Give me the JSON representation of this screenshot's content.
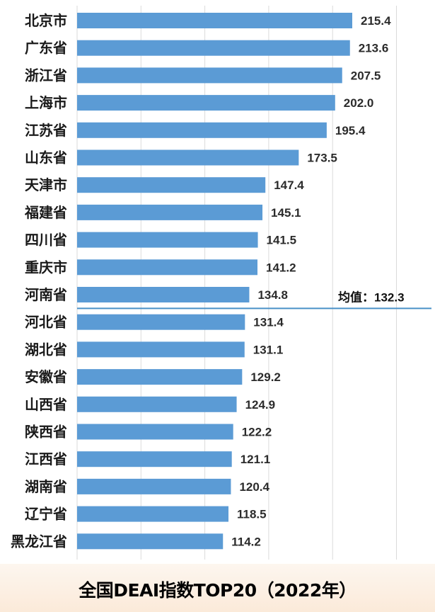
{
  "title": "全国DEAI指数TOP20（2022年）",
  "mean": {
    "label": "均值：",
    "value": "132.3"
  },
  "colors": {
    "bar": "#5b9bd5",
    "mean_line": "#4a90c8",
    "footer_band": "#fbead9"
  },
  "chart_data": {
    "type": "bar",
    "orientation": "horizontal",
    "title": "全国DEAI指数TOP20（2022年）",
    "xlabel": "",
    "ylabel": "",
    "xlim": [
      0,
      250
    ],
    "grid": true,
    "reference_line": {
      "label": "均值：",
      "value": 132.3
    },
    "categories": [
      "北京市",
      "广东省",
      "浙江省",
      "上海市",
      "江苏省",
      "山东省",
      "天津市",
      "福建省",
      "四川省",
      "重庆市",
      "河南省",
      "河北省",
      "湖北省",
      "安徽省",
      "山西省",
      "陕西省",
      "江西省",
      "湖南省",
      "辽宁省",
      "黑龙江省"
    ],
    "values": [
      215.4,
      213.6,
      207.5,
      202.0,
      195.4,
      173.5,
      147.4,
      145.1,
      141.5,
      141.2,
      134.8,
      131.4,
      131.1,
      129.2,
      124.9,
      122.2,
      121.1,
      120.4,
      118.5,
      114.2
    ],
    "value_labels": [
      "215.4",
      "213.6",
      "207.5",
      "202.0",
      "195.4",
      "173.5",
      "147.4",
      "145.1",
      "141.5",
      "141.2",
      "134.8",
      "131.4",
      "131.1",
      "129.2",
      "124.9",
      "122.2",
      "121.1",
      "120.4",
      "118.5",
      "114.2"
    ]
  }
}
